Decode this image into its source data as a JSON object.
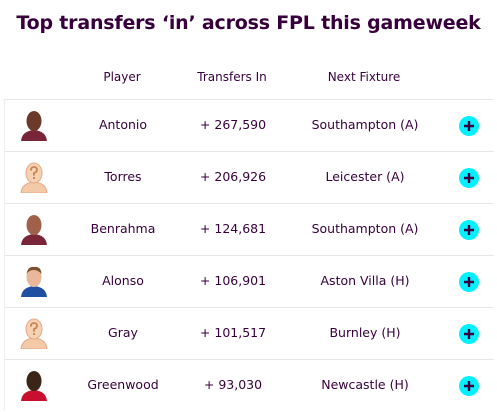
{
  "header": {
    "title": "Top transfers ‘in’ across FPL this gameweek"
  },
  "table": {
    "columns": [
      "Player",
      "Transfers In",
      "Next Fixture"
    ],
    "rows": [
      [
        "Antonio",
        "+ 267,590",
        "Southampton (A)"
      ],
      [
        "Torres",
        "+ 206,926",
        "Leicester (A)"
      ],
      [
        "Benrahma",
        "+ 124,681",
        "Southampton (A)"
      ],
      [
        "Alonso",
        "+ 106,901",
        "Aston Villa (H)"
      ],
      [
        "Gray",
        "+ 101,517",
        "Burnley (H)"
      ],
      [
        "Greenwood",
        "+ 93,030",
        "Newcastle (H)"
      ]
    ]
  }
}
